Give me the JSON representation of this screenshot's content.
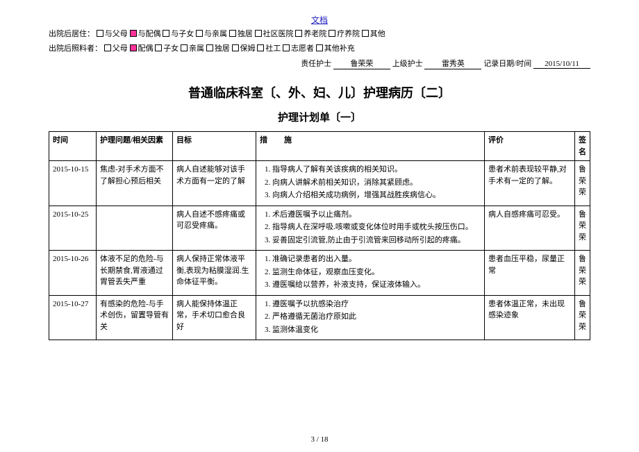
{
  "header": {
    "doclink_text": "文档",
    "residence": {
      "label": "出院后居住：",
      "options": [
        {
          "text": "与父母",
          "checked": false
        },
        {
          "text": "与配偶",
          "checked": true
        },
        {
          "text": "与子女",
          "checked": false
        },
        {
          "text": "与亲属",
          "checked": false
        },
        {
          "text": "独居",
          "checked": false
        },
        {
          "text": "社区医院",
          "checked": false
        },
        {
          "text": "养老院",
          "checked": false
        },
        {
          "text": "疗养院",
          "checked": false
        },
        {
          "text": "其他",
          "checked": false
        }
      ]
    },
    "caregiver": {
      "label": "出院后照料者：",
      "options": [
        {
          "text": "父母",
          "checked": false
        },
        {
          "text": "配偶",
          "checked": true
        },
        {
          "text": "子女",
          "checked": false
        },
        {
          "text": "亲属",
          "checked": false
        },
        {
          "text": "独居",
          "checked": false
        },
        {
          "text": "保姆",
          "checked": false
        },
        {
          "text": "社工",
          "checked": false
        },
        {
          "text": "志愿者",
          "checked": false
        },
        {
          "text": "其他补充",
          "checked": false
        }
      ]
    },
    "sign": {
      "resp_nurse_label": "责任护士",
      "resp_nurse_value": "鲁荣荣",
      "senior_nurse_label": "上级护士",
      "senior_nurse_value": "雷秀英",
      "date_label": "记录日期/时间",
      "date_value": "2015/10/11"
    }
  },
  "title": "普通临床科室〔、外、妇、儿〕护理病历〔二〕",
  "subtitle": "护理计划单〔一〕",
  "table": {
    "columns": {
      "time": "时间",
      "problem": "护理问题/相关因素",
      "goal": "目标",
      "measures": "措施",
      "evaluation": "评价",
      "signature": "签名"
    },
    "rows": [
      {
        "time": "2015-10-15",
        "problem": "焦虑-对手术方面不了解担心预后相关",
        "goal": "病人自述能够对该手术方面有一定的了解",
        "measures": [
          "指导病人了解有关该疾病的相关知识。",
          "向病人讲解术前相关知识，消除其紧顾虑。",
          "向病人介绍相关成功病例，增强其战胜疾病信心。"
        ],
        "evaluation": "患者术前表现较平静,对手术有一定的了解。",
        "signature": "鲁荣荣"
      },
      {
        "time": "2015-10-25",
        "problem": "",
        "goal": "病人自述不感疼痛或可忍受疼痛。",
        "measures": [
          "术后遵医嘱予以止痛剂。",
          "指导病人在深呼吸.咳嗽或变化体位时用手或枕头按压伤口。",
          "妥善固定引流管,防止由于引流管来回移动所引起的疼痛。"
        ],
        "evaluation": "病人自感疼痛可忍受。",
        "signature": "鲁荣荣"
      },
      {
        "time": "2015-10-26",
        "problem": "体液不足的危险-与长期禁食,胃液通过胃管丢失严重",
        "goal": "病人保持正常体液平衡,表现为粘膜湿润.生命体征平衡。",
        "measures": [
          "准确记录患者的出入量。",
          "监测生命体征，观察血压变化。",
          "遵医嘱给以营养，补液支持，保证液体输入。"
        ],
        "evaluation": "患者血压平稳，尿量正常",
        "signature": "鲁荣荣"
      },
      {
        "time": "2015-10-27",
        "problem": "有感染的危险-与手术创伤，留置导管有关",
        "goal": "病人能保持体温正常，手术切口愈合良好",
        "measures": [
          "遵医嘱予以抗感染治疗",
          "严格遵循无菌治疗原如此",
          "监测体温变化"
        ],
        "evaluation": "患者体温正常，未出现感染迹象",
        "signature": "鲁荣荣"
      }
    ]
  },
  "pagenum": "3 / 18"
}
